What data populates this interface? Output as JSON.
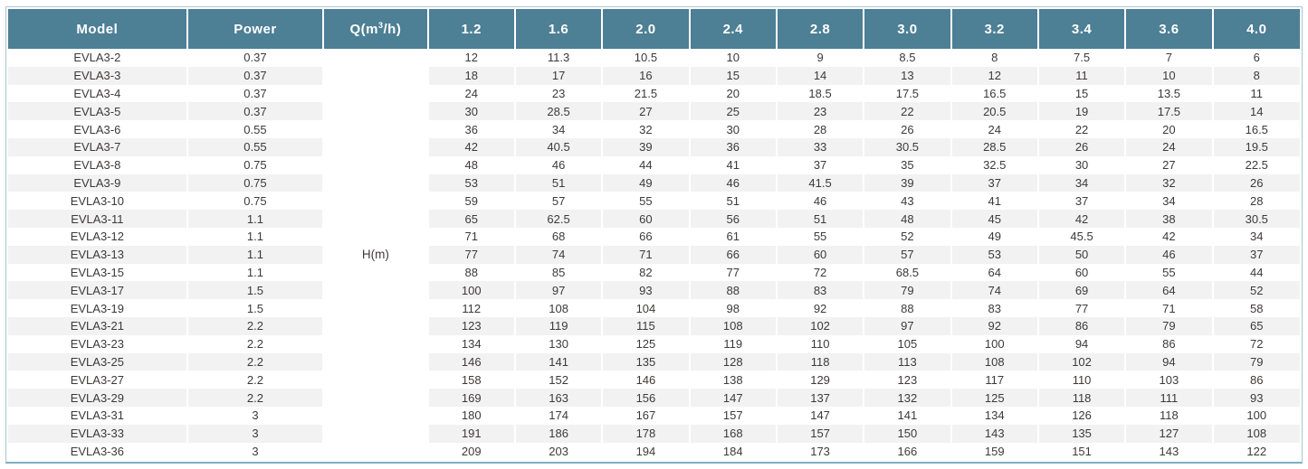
{
  "table": {
    "header": [
      {
        "label": "Model"
      },
      {
        "label": "Power"
      },
      {
        "label": "Q(m",
        "sup": "3",
        "suffix": "/h)"
      },
      {
        "label": "1.2"
      },
      {
        "label": "1.6"
      },
      {
        "label": "2.0"
      },
      {
        "label": "2.4"
      },
      {
        "label": "2.8"
      },
      {
        "label": "3.0"
      },
      {
        "label": "3.2"
      },
      {
        "label": "3.4"
      },
      {
        "label": "3.6"
      },
      {
        "label": "4.0"
      }
    ],
    "flow_values": [
      "1.2",
      "1.6",
      "2.0",
      "2.4",
      "2.8",
      "3.0",
      "3.2",
      "3.4",
      "3.6",
      "4.0"
    ],
    "merged_q_label": "H(m)",
    "rows": [
      {
        "model": "EVLA3-2",
        "power": "0.37",
        "heads": [
          "12",
          "11.3",
          "10.5",
          "10",
          "9",
          "8.5",
          "8",
          "7.5",
          "7",
          "6"
        ]
      },
      {
        "model": "EVLA3-3",
        "power": "0.37",
        "heads": [
          "18",
          "17",
          "16",
          "15",
          "14",
          "13",
          "12",
          "11",
          "10",
          "8"
        ]
      },
      {
        "model": "EVLA3-4",
        "power": "0.37",
        "heads": [
          "24",
          "23",
          "21.5",
          "20",
          "18.5",
          "17.5",
          "16.5",
          "15",
          "13.5",
          "11"
        ]
      },
      {
        "model": "EVLA3-5",
        "power": "0.37",
        "heads": [
          "30",
          "28.5",
          "27",
          "25",
          "23",
          "22",
          "20.5",
          "19",
          "17.5",
          "14"
        ]
      },
      {
        "model": "EVLA3-6",
        "power": "0.55",
        "heads": [
          "36",
          "34",
          "32",
          "30",
          "28",
          "26",
          "24",
          "22",
          "20",
          "16.5"
        ]
      },
      {
        "model": "EVLA3-7",
        "power": "0.55",
        "heads": [
          "42",
          "40.5",
          "39",
          "36",
          "33",
          "30.5",
          "28.5",
          "26",
          "24",
          "19.5"
        ]
      },
      {
        "model": "EVLA3-8",
        "power": "0.75",
        "heads": [
          "48",
          "46",
          "44",
          "41",
          "37",
          "35",
          "32.5",
          "30",
          "27",
          "22.5"
        ]
      },
      {
        "model": "EVLA3-9",
        "power": "0.75",
        "heads": [
          "53",
          "51",
          "49",
          "46",
          "41.5",
          "39",
          "37",
          "34",
          "32",
          "26"
        ]
      },
      {
        "model": "EVLA3-10",
        "power": "0.75",
        "heads": [
          "59",
          "57",
          "55",
          "51",
          "46",
          "43",
          "41",
          "37",
          "34",
          "28"
        ]
      },
      {
        "model": "EVLA3-11",
        "power": "1.1",
        "heads": [
          "65",
          "62.5",
          "60",
          "56",
          "51",
          "48",
          "45",
          "42",
          "38",
          "30.5"
        ]
      },
      {
        "model": "EVLA3-12",
        "power": "1.1",
        "heads": [
          "71",
          "68",
          "66",
          "61",
          "55",
          "52",
          "49",
          "45.5",
          "42",
          "34"
        ]
      },
      {
        "model": "EVLA3-13",
        "power": "1.1",
        "heads": [
          "77",
          "74",
          "71",
          "66",
          "60",
          "57",
          "53",
          "50",
          "46",
          "37"
        ]
      },
      {
        "model": "EVLA3-15",
        "power": "1.1",
        "heads": [
          "88",
          "85",
          "82",
          "77",
          "72",
          "68.5",
          "64",
          "60",
          "55",
          "44"
        ]
      },
      {
        "model": "EVLA3-17",
        "power": "1.5",
        "heads": [
          "100",
          "97",
          "93",
          "88",
          "83",
          "79",
          "74",
          "69",
          "64",
          "52"
        ]
      },
      {
        "model": "EVLA3-19",
        "power": "1.5",
        "heads": [
          "112",
          "108",
          "104",
          "98",
          "92",
          "88",
          "83",
          "77",
          "71",
          "58"
        ]
      },
      {
        "model": "EVLA3-21",
        "power": "2.2",
        "heads": [
          "123",
          "119",
          "115",
          "108",
          "102",
          "97",
          "92",
          "86",
          "79",
          "65"
        ]
      },
      {
        "model": "EVLA3-23",
        "power": "2.2",
        "heads": [
          "134",
          "130",
          "125",
          "119",
          "110",
          "105",
          "100",
          "94",
          "86",
          "72"
        ]
      },
      {
        "model": "EVLA3-25",
        "power": "2.2",
        "heads": [
          "146",
          "141",
          "135",
          "128",
          "118",
          "113",
          "108",
          "102",
          "94",
          "79"
        ]
      },
      {
        "model": "EVLA3-27",
        "power": "2.2",
        "heads": [
          "158",
          "152",
          "146",
          "138",
          "129",
          "123",
          "117",
          "110",
          "103",
          "86"
        ]
      },
      {
        "model": "EVLA3-29",
        "power": "2.2",
        "heads": [
          "169",
          "163",
          "156",
          "147",
          "137",
          "132",
          "125",
          "118",
          "111",
          "93"
        ]
      },
      {
        "model": "EVLA3-31",
        "power": "3",
        "heads": [
          "180",
          "174",
          "167",
          "157",
          "147",
          "141",
          "134",
          "126",
          "118",
          "100"
        ]
      },
      {
        "model": "EVLA3-33",
        "power": "3",
        "heads": [
          "191",
          "186",
          "178",
          "168",
          "157",
          "150",
          "143",
          "135",
          "127",
          "108"
        ]
      },
      {
        "model": "EVLA3-36",
        "power": "3",
        "heads": [
          "209",
          "203",
          "194",
          "184",
          "173",
          "166",
          "159",
          "151",
          "143",
          "122"
        ]
      }
    ]
  },
  "colors": {
    "header_bg": "#4d7f95",
    "header_text": "#ffffff",
    "row_stripe": "#f2f2f2",
    "body_text": "#3d3a39",
    "frame_border": "#a9c8d5"
  }
}
